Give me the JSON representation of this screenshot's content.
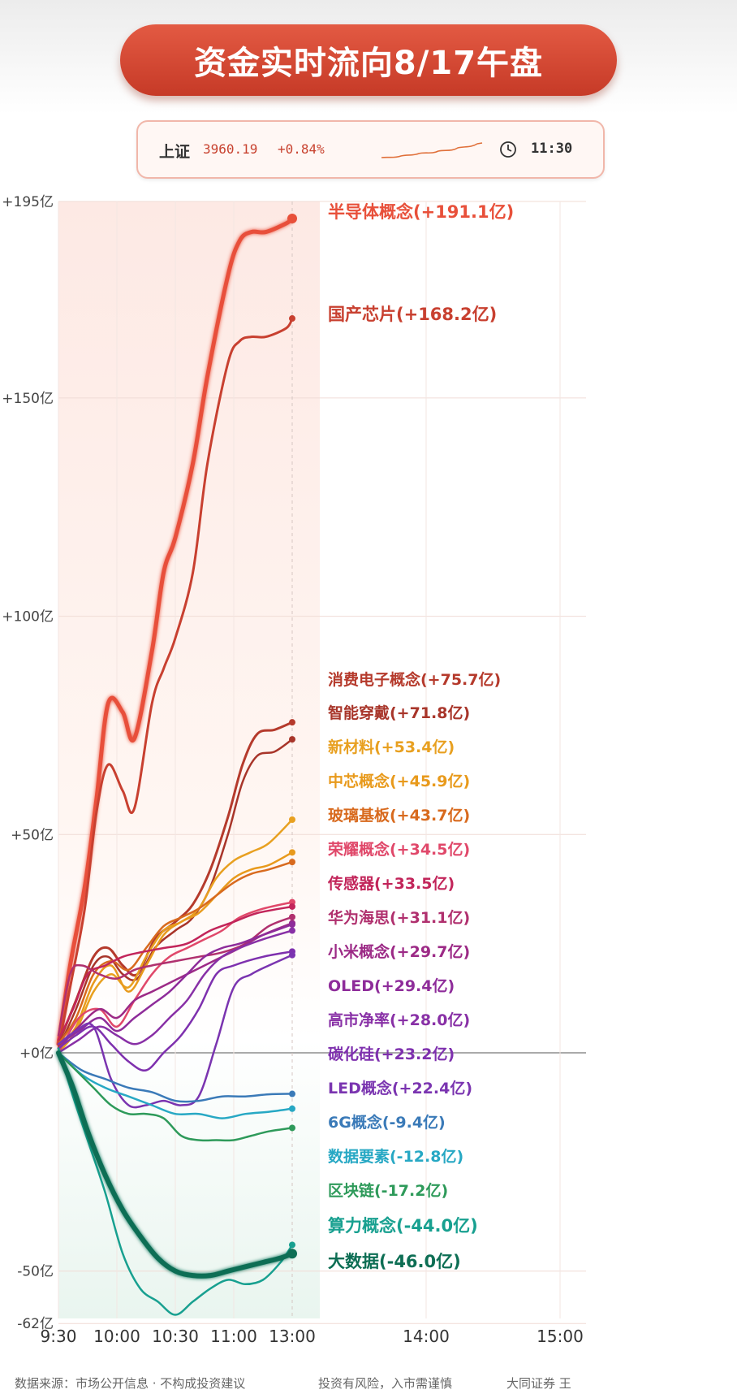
{
  "title": "资金实时流向8/17午盘",
  "index_bar": {
    "name": "上证",
    "value": "3960.19",
    "change": "+0.84%",
    "time": "11:30",
    "icons": [
      "sparkline-icon",
      "clock-icon"
    ]
  },
  "footer": {
    "source": "数据来源：市场公开信息 · 不构成投资建议",
    "risk": "投资有风险，入市需谨慎",
    "author": "大同证券 王"
  },
  "chart_data": {
    "type": "line",
    "title": "资金实时流向8/17午盘",
    "x_ticks": [
      "9:30",
      "10:00",
      "10:30",
      "11:00",
      "13:00",
      "14:00",
      "15:00"
    ],
    "y_ticks": [
      "+195亿",
      "+150亿",
      "+100亿",
      "+50亿",
      "+0亿",
      "-50亿",
      "-62亿"
    ],
    "ylim": [
      -62,
      195
    ],
    "grid": true,
    "legend": "right-side end labels",
    "series": [
      {
        "name": "半导体概念",
        "label": "半导体概念(+191.1亿)",
        "color": "#e8503a",
        "width": 5,
        "x": [
          0,
          0.2,
          0.45,
          0.65,
          0.85,
          1.1,
          1.3,
          1.6,
          1.8,
          2.0,
          2.3,
          2.55,
          2.9,
          3.1,
          3.3,
          3.55,
          3.9,
          4.0
        ],
        "values": [
          2,
          20,
          38,
          58,
          80,
          78,
          72,
          92,
          110,
          118,
          135,
          155,
          178,
          186,
          188,
          188,
          190,
          191.1
        ]
      },
      {
        "name": "国产芯片",
        "label": "国产芯片(+168.2亿)",
        "color": "#c84030",
        "width": 3,
        "x": [
          0,
          0.2,
          0.45,
          0.65,
          0.85,
          1.1,
          1.3,
          1.6,
          1.8,
          2.0,
          2.3,
          2.55,
          2.9,
          3.1,
          3.3,
          3.55,
          3.9,
          4.0
        ],
        "values": [
          1,
          15,
          33,
          55,
          66,
          60,
          56,
          80,
          88,
          95,
          110,
          135,
          158,
          163,
          164,
          164,
          166,
          168.2
        ]
      },
      {
        "name": "消费电子概念",
        "label": "消费电子概念(+75.7亿)",
        "color": "#b53a2c",
        "width": 3,
        "x": [
          0,
          0.3,
          0.6,
          0.85,
          1.1,
          1.35,
          1.65,
          2.0,
          2.3,
          2.6,
          2.9,
          3.15,
          3.4,
          3.7,
          4.0
        ],
        "values": [
          2,
          12,
          22,
          24,
          20,
          18,
          26,
          30,
          34,
          42,
          54,
          66,
          73,
          74,
          75.7
        ]
      },
      {
        "name": "智能穿戴",
        "label": "智能穿戴(+71.8亿)",
        "color": "#a8352a",
        "width": 2.5,
        "x": [
          0,
          0.3,
          0.6,
          0.85,
          1.1,
          1.35,
          1.65,
          2.0,
          2.3,
          2.6,
          2.9,
          3.15,
          3.4,
          3.7,
          4.0
        ],
        "values": [
          1,
          10,
          20,
          22,
          18,
          17,
          24,
          28,
          31,
          38,
          50,
          62,
          68,
          69,
          71.8
        ]
      },
      {
        "name": "新材料",
        "label": "新材料(+53.4亿)",
        "color": "#e8a020",
        "width": 2.5,
        "x": [
          0,
          0.3,
          0.6,
          0.9,
          1.2,
          1.5,
          1.8,
          2.1,
          2.4,
          2.7,
          3.0,
          3.3,
          3.6,
          4.0
        ],
        "values": [
          0,
          5,
          14,
          18,
          15,
          22,
          28,
          30,
          33,
          40,
          44,
          46,
          48,
          53.4
        ]
      },
      {
        "name": "中芯概念",
        "label": "中芯概念(+45.9亿)",
        "color": "#e89a1c",
        "width": 2.5,
        "x": [
          0,
          0.3,
          0.6,
          0.9,
          1.2,
          1.5,
          1.8,
          2.1,
          2.4,
          2.7,
          3.0,
          3.3,
          3.6,
          4.0
        ],
        "values": [
          1,
          6,
          16,
          20,
          14,
          20,
          27,
          30,
          32,
          36,
          40,
          42,
          43,
          45.9
        ]
      },
      {
        "name": "玻璃基板",
        "label": "玻璃基板(+43.7亿)",
        "color": "#d86a1e",
        "width": 2.5,
        "x": [
          0,
          0.3,
          0.6,
          0.9,
          1.2,
          1.5,
          1.8,
          2.1,
          2.4,
          2.7,
          3.0,
          3.3,
          3.6,
          4.0
        ],
        "values": [
          2,
          8,
          18,
          21,
          19,
          24,
          29,
          31,
          33,
          36,
          39,
          41,
          42,
          43.7
        ]
      },
      {
        "name": "荣耀概念",
        "label": "荣耀概念(+34.5亿)",
        "color": "#e0486a",
        "width": 2.5,
        "x": [
          0,
          0.35,
          0.7,
          1.0,
          1.3,
          1.6,
          1.9,
          2.2,
          2.5,
          2.8,
          3.1,
          3.5,
          4.0
        ],
        "values": [
          0,
          8,
          10,
          6,
          12,
          18,
          22,
          24,
          26,
          28,
          31,
          33,
          34.5
        ]
      },
      {
        "name": "传感器",
        "label": "传感器(+33.5亿)",
        "color": "#c2255a",
        "width": 2.5,
        "x": [
          0,
          0.25,
          0.5,
          0.8,
          1.1,
          1.4,
          1.8,
          2.2,
          2.6,
          3.0,
          3.4,
          4.0
        ],
        "values": [
          3,
          10,
          18,
          20,
          22,
          23,
          24,
          25,
          28,
          30,
          32,
          33.5
        ]
      },
      {
        "name": "华为海思",
        "label": "华为海思(+31.1亿)",
        "color": "#b0306e",
        "width": 2.5,
        "x": [
          0,
          0.2,
          0.4,
          0.7,
          1.0,
          1.3,
          1.6,
          2.0,
          2.4,
          2.8,
          3.2,
          3.6,
          4.0
        ],
        "values": [
          4,
          18,
          20,
          18,
          17,
          19,
          20,
          21,
          22,
          23,
          25,
          29,
          31.1
        ]
      },
      {
        "name": "小米概念",
        "label": "小米概念(+29.7亿)",
        "color": "#9c2a86",
        "width": 2.5,
        "x": [
          0,
          0.35,
          0.7,
          1.0,
          1.3,
          1.6,
          1.9,
          2.2,
          2.5,
          2.8,
          3.1,
          3.5,
          4.0
        ],
        "values": [
          1,
          6,
          10,
          8,
          12,
          14,
          16,
          18,
          20,
          22,
          24,
          27,
          29.7
        ]
      },
      {
        "name": "OLED",
        "label": "OLED(+29.4亿)",
        "color": "#8e2c9a",
        "width": 2.5,
        "x": [
          0,
          0.35,
          0.7,
          1.0,
          1.3,
          1.6,
          1.9,
          2.2,
          2.5,
          2.8,
          3.1,
          3.5,
          4.0
        ],
        "values": [
          2,
          5,
          8,
          5,
          8,
          11,
          14,
          18,
          22,
          24,
          25,
          27,
          29.4
        ]
      },
      {
        "name": "高市净率",
        "label": "高市净率(+28.0亿)",
        "color": "#8830a6",
        "width": 2.5,
        "x": [
          0,
          0.35,
          0.7,
          1.0,
          1.3,
          1.6,
          1.9,
          2.2,
          2.5,
          2.8,
          3.1,
          3.5,
          4.0
        ],
        "values": [
          0,
          3,
          6,
          4,
          2,
          4,
          8,
          12,
          18,
          22,
          24,
          26,
          28.0
        ]
      },
      {
        "name": "碳化硅",
        "label": "碳化硅(+23.2亿)",
        "color": "#7e30ae",
        "width": 2.5,
        "x": [
          0,
          0.3,
          0.6,
          0.9,
          1.2,
          1.5,
          1.8,
          2.1,
          2.4,
          2.7,
          3.0,
          3.5,
          4.0
        ],
        "values": [
          1,
          4,
          6,
          2,
          -2,
          -4,
          0,
          4,
          10,
          18,
          20,
          22,
          23.2
        ]
      },
      {
        "name": "LED概念",
        "label": "LED概念(+22.4亿)",
        "color": "#7a34b0",
        "width": 2.5,
        "x": [
          0,
          0.3,
          0.6,
          0.9,
          1.2,
          1.5,
          1.8,
          2.1,
          2.4,
          2.7,
          3.0,
          3.3,
          3.6,
          4.0
        ],
        "values": [
          2,
          5,
          6,
          -6,
          -12,
          -12,
          -11,
          -12,
          -10,
          2,
          15,
          18,
          20,
          22.4
        ]
      },
      {
        "name": "6G概念",
        "label": "6G概念(-9.4亿)",
        "color": "#3a7ab8",
        "width": 2.5,
        "x": [
          0,
          0.4,
          0.8,
          1.2,
          1.6,
          2.0,
          2.4,
          2.8,
          3.2,
          3.6,
          4.0
        ],
        "values": [
          0,
          -4,
          -6,
          -8,
          -9,
          -11,
          -11,
          -10,
          -10,
          -9.5,
          -9.4
        ]
      },
      {
        "name": "数据要素",
        "label": "数据要素(-12.8亿)",
        "color": "#27a8c4",
        "width": 2.5,
        "x": [
          0,
          0.4,
          0.8,
          1.2,
          1.6,
          2.0,
          2.4,
          2.8,
          3.2,
          3.6,
          4.0
        ],
        "values": [
          0,
          -5,
          -8,
          -10,
          -12,
          -14,
          -14,
          -15,
          -14,
          -13.5,
          -12.8
        ]
      },
      {
        "name": "区块链",
        "label": "区块链(-17.2亿)",
        "color": "#2e9a5a",
        "width": 2.5,
        "x": [
          0,
          0.3,
          0.6,
          0.9,
          1.2,
          1.5,
          1.8,
          2.1,
          2.4,
          2.7,
          3.0,
          3.3,
          3.6,
          4.0
        ],
        "values": [
          0,
          -4,
          -8,
          -12,
          -14,
          -14,
          -15,
          -19,
          -20,
          -20,
          -20,
          -19,
          -18,
          -17.2
        ]
      },
      {
        "name": "算力概念",
        "label": "算力概念(-44.0亿)",
        "color": "#18a090",
        "width": 2.5,
        "x": [
          0,
          0.25,
          0.5,
          0.8,
          1.1,
          1.4,
          1.7,
          2.0,
          2.3,
          2.6,
          2.9,
          3.2,
          3.5,
          3.8,
          4.0
        ],
        "values": [
          1,
          -10,
          -20,
          -32,
          -46,
          -54,
          -57,
          -60,
          -57,
          -54,
          -52,
          -53,
          -52,
          -48,
          -44.0
        ]
      },
      {
        "name": "大数据",
        "label": "大数据(-46.0亿)",
        "color": "#0d6e54",
        "width": 6,
        "x": [
          0,
          0.25,
          0.5,
          0.8,
          1.1,
          1.4,
          1.7,
          2.0,
          2.3,
          2.6,
          2.9,
          3.2,
          3.5,
          3.8,
          4.0
        ],
        "values": [
          0,
          -8,
          -18,
          -28,
          -36,
          -42,
          -47,
          -50,
          -51,
          -51,
          -50,
          -49,
          -48,
          -47,
          -46.0
        ]
      }
    ]
  }
}
